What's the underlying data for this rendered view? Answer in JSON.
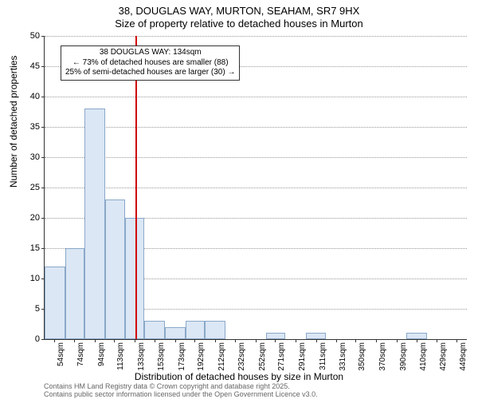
{
  "title": {
    "line1": "38, DOUGLAS WAY, MURTON, SEAHAM, SR7 9HX",
    "line2": "Size of property relative to detached houses in Murton"
  },
  "chart": {
    "type": "histogram",
    "background_color": "#ffffff",
    "grid_color": "#999999",
    "axis_color": "#333333",
    "bar_fill": "#dbe7f5",
    "bar_border": "#8aa8c8",
    "reference_line_color": "#d00000",
    "reference_value": 134,
    "ylim": [
      0,
      50
    ],
    "yticks": [
      0,
      5,
      10,
      15,
      20,
      25,
      30,
      35,
      40,
      45,
      50
    ],
    "xticks": [
      "54sqm",
      "74sqm",
      "94sqm",
      "113sqm",
      "133sqm",
      "153sqm",
      "173sqm",
      "192sqm",
      "212sqm",
      "232sqm",
      "252sqm",
      "271sqm",
      "291sqm",
      "311sqm",
      "331sqm",
      "350sqm",
      "370sqm",
      "390sqm",
      "410sqm",
      "429sqm",
      "449sqm"
    ],
    "xtick_values": [
      54,
      74,
      94,
      113,
      133,
      153,
      173,
      192,
      212,
      232,
      252,
      271,
      291,
      311,
      331,
      350,
      370,
      390,
      410,
      429,
      449
    ],
    "xlim": [
      45,
      459
    ],
    "bars": [
      {
        "x0": 45,
        "x1": 65,
        "count": 12
      },
      {
        "x0": 65,
        "x1": 84,
        "count": 15
      },
      {
        "x0": 84,
        "x1": 104,
        "count": 38
      },
      {
        "x0": 104,
        "x1": 124,
        "count": 23
      },
      {
        "x0": 124,
        "x1": 143,
        "count": 20
      },
      {
        "x0": 143,
        "x1": 163,
        "count": 3
      },
      {
        "x0": 163,
        "x1": 183,
        "count": 2
      },
      {
        "x0": 183,
        "x1": 202,
        "count": 3
      },
      {
        "x0": 202,
        "x1": 222,
        "count": 3
      },
      {
        "x0": 222,
        "x1": 242,
        "count": 0
      },
      {
        "x0": 242,
        "x1": 262,
        "count": 0
      },
      {
        "x0": 262,
        "x1": 281,
        "count": 1
      },
      {
        "x0": 281,
        "x1": 301,
        "count": 0
      },
      {
        "x0": 301,
        "x1": 321,
        "count": 1
      },
      {
        "x0": 321,
        "x1": 341,
        "count": 0
      },
      {
        "x0": 341,
        "x1": 360,
        "count": 0
      },
      {
        "x0": 360,
        "x1": 380,
        "count": 0
      },
      {
        "x0": 380,
        "x1": 400,
        "count": 0
      },
      {
        "x0": 400,
        "x1": 420,
        "count": 1
      },
      {
        "x0": 420,
        "x1": 439,
        "count": 0
      },
      {
        "x0": 439,
        "x1": 459,
        "count": 0
      }
    ],
    "ylabel": "Number of detached properties",
    "xlabel": "Distribution of detached houses by size in Murton"
  },
  "annotation": {
    "line1": "38 DOUGLAS WAY: 134sqm",
    "line2": "← 73% of detached houses are smaller (88)",
    "line3": "25% of semi-detached houses are larger (30) →"
  },
  "footer": {
    "line1": "Contains HM Land Registry data © Crown copyright and database right 2025.",
    "line2": "Contains public sector information licensed under the Open Government Licence v3.0."
  }
}
